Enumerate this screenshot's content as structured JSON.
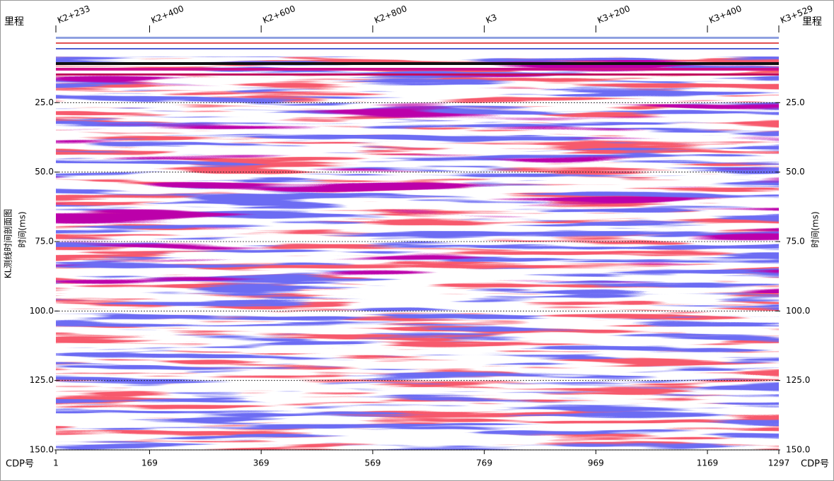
{
  "chart_data": {
    "type": "seismic",
    "title": "KL测线时间剖面图",
    "y_label": "时间(ms)",
    "top_axis_label": "里程",
    "x_label": "CDP号",
    "xlim": [
      1,
      1297
    ],
    "xticks": [
      1,
      169,
      369,
      569,
      769,
      969,
      1169,
      1297
    ],
    "mileage_ticks": [
      {
        "value": 1,
        "label": "K2+233"
      },
      {
        "value": 169,
        "label": "K2+400"
      },
      {
        "value": 369,
        "label": "K2+600"
      },
      {
        "value": 569,
        "label": "K2+800"
      },
      {
        "value": 769,
        "label": "K3"
      },
      {
        "value": 969,
        "label": "K3+200"
      },
      {
        "value": 1169,
        "label": "K3+400"
      },
      {
        "value": 1297,
        "label": "K3+529"
      }
    ],
    "ylim": [
      0,
      150
    ],
    "yticks": [
      {
        "value": 25,
        "label": "25.0"
      },
      {
        "value": 50,
        "label": "50.0"
      },
      {
        "value": 75,
        "label": "75.0"
      },
      {
        "value": 100,
        "label": "100.0"
      },
      {
        "value": 125,
        "label": "125.0"
      },
      {
        "value": 150,
        "label": "150.0"
      }
    ],
    "y_inverted": true,
    "grid": true
  }
}
